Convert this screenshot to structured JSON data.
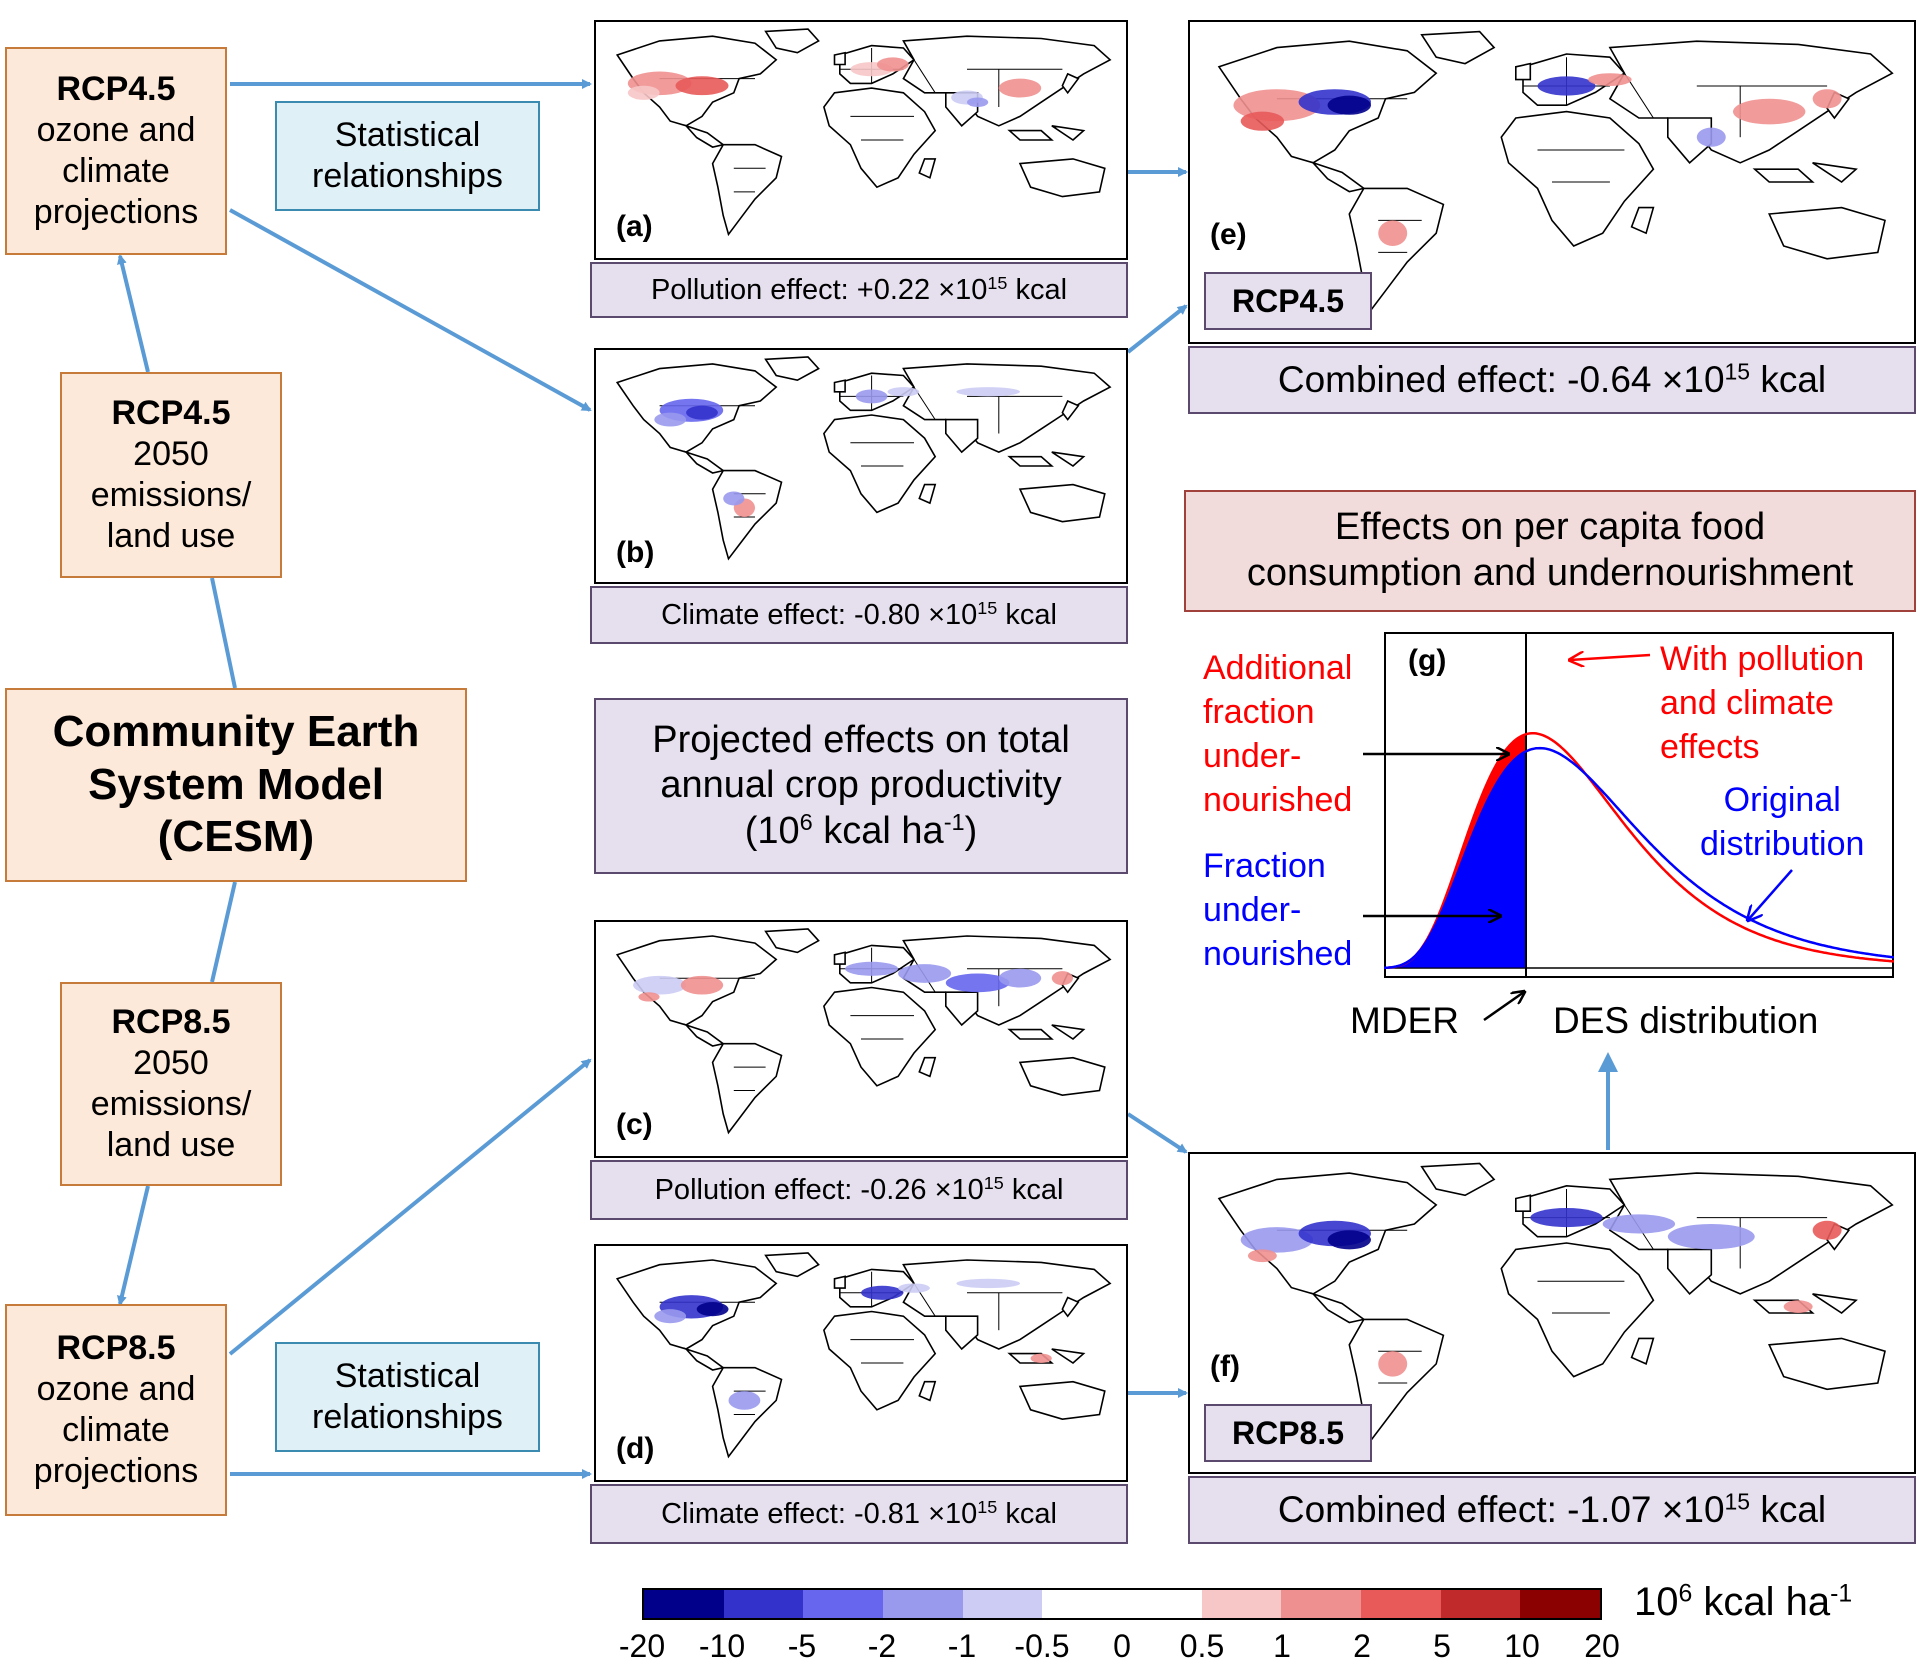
{
  "flow": {
    "rcp45_top": {
      "title": "RCP4.5",
      "lines": [
        "ozone and",
        "climate",
        "projections"
      ]
    },
    "rcp45_mid": {
      "title": "RCP4.5",
      "lines": [
        "2050",
        "emissions/",
        "land use"
      ]
    },
    "cesm": {
      "lines": [
        "Community Earth",
        "System Model",
        "(CESM)"
      ]
    },
    "rcp85_mid": {
      "title": "RCP8.5",
      "lines": [
        "2050",
        "emissions/",
        "land use"
      ]
    },
    "rcp85_bot": {
      "title": "RCP8.5",
      "lines": [
        "ozone and",
        "climate",
        "projections"
      ]
    },
    "stat_top": {
      "lines": [
        "Statistical",
        "relationships"
      ]
    },
    "stat_bot": {
      "lines": [
        "Statistical",
        "relationships"
      ]
    }
  },
  "center_box": {
    "line1": "Projected effects on total",
    "line2": "annual crop productivity",
    "line3_pre": "(10",
    "line3_sup": "6",
    "line3_mid": " kcal ha",
    "line3_sup2": "-1",
    "line3_post": ")"
  },
  "panels": {
    "a": {
      "letter": "(a)",
      "caption_pre": "Pollution effect: +0.22 ×10",
      "caption_sup": "15",
      "caption_post": " kcal"
    },
    "b": {
      "letter": "(b)",
      "caption_pre": "Climate effect: -0.80 ×10",
      "caption_sup": "15",
      "caption_post": " kcal"
    },
    "c": {
      "letter": "(c)",
      "caption_pre": "Pollution effect: -0.26 ×10",
      "caption_sup": "15",
      "caption_post": " kcal"
    },
    "d": {
      "letter": "(d)",
      "caption_pre": "Climate effect: -0.81 ×10",
      "caption_sup": "15",
      "caption_post": " kcal"
    },
    "e": {
      "letter": "(e)",
      "badge": "RCP4.5",
      "caption_pre": "Combined effect: -0.64 ×10",
      "caption_sup": "15",
      "caption_post": " kcal"
    },
    "f": {
      "letter": "(f)",
      "badge": "RCP8.5",
      "caption_pre": "Combined effect: -1.07 ×10",
      "caption_sup": "15",
      "caption_post": " kcal"
    }
  },
  "effects_box": {
    "line1": "Effects on per capita food",
    "line2": "consumption and undernourishment"
  },
  "panel_g": {
    "letter": "(g)",
    "additional": [
      "Additional",
      "fraction",
      "under-",
      "nourished"
    ],
    "fraction": [
      "Fraction",
      "under-",
      "nourished"
    ],
    "with_pollution": [
      "With pollution",
      "and climate",
      "effects"
    ],
    "original": [
      "Original",
      "distribution"
    ],
    "mder": "MDER",
    "des": "DES distribution"
  },
  "colorbar": {
    "unit_pre": "10",
    "unit_sup": "6",
    "unit_mid": " kcal ha",
    "unit_sup2": "-1",
    "ticks": [
      "-20",
      "-10",
      "-5",
      "-2",
      "-1",
      "-0.5",
      "0",
      "0.5",
      "1",
      "2",
      "5",
      "10",
      "20"
    ],
    "colors": [
      "#00008b",
      "#3333cc",
      "#6666ee",
      "#9999ee",
      "#ccccf5",
      "#ffffff",
      "#ffffff",
      "#f7c6c6",
      "#ef9090",
      "#e85a5a",
      "#c02a2a",
      "#8b0000"
    ]
  },
  "colors": {
    "arrow": "#5b9bd5",
    "red": "#ff0000",
    "blue": "#0000ff"
  }
}
